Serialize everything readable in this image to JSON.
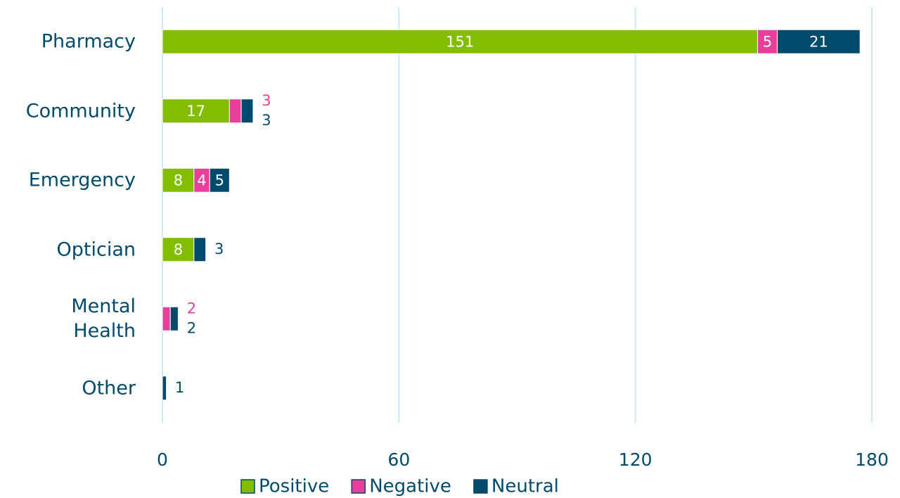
{
  "chart_data": {
    "type": "stacked-barh",
    "categories": [
      "Pharmacy",
      "Community",
      "Emergency",
      "Optician",
      "Mental Health",
      "Other"
    ],
    "series": [
      {
        "name": "Positive",
        "color": "#84bd00",
        "values": [
          151,
          17,
          8,
          8,
          null,
          null
        ]
      },
      {
        "name": "Negative",
        "color": "#e8409a",
        "values": [
          5,
          3,
          4,
          null,
          2,
          null
        ]
      },
      {
        "name": "Neutral",
        "color": "#004b6b",
        "values": [
          21,
          3,
          5,
          3,
          2,
          1
        ]
      }
    ],
    "xlim": [
      0,
      180
    ],
    "xticks": [
      0,
      60,
      120,
      180
    ],
    "grid": true,
    "legend": "bottom"
  }
}
